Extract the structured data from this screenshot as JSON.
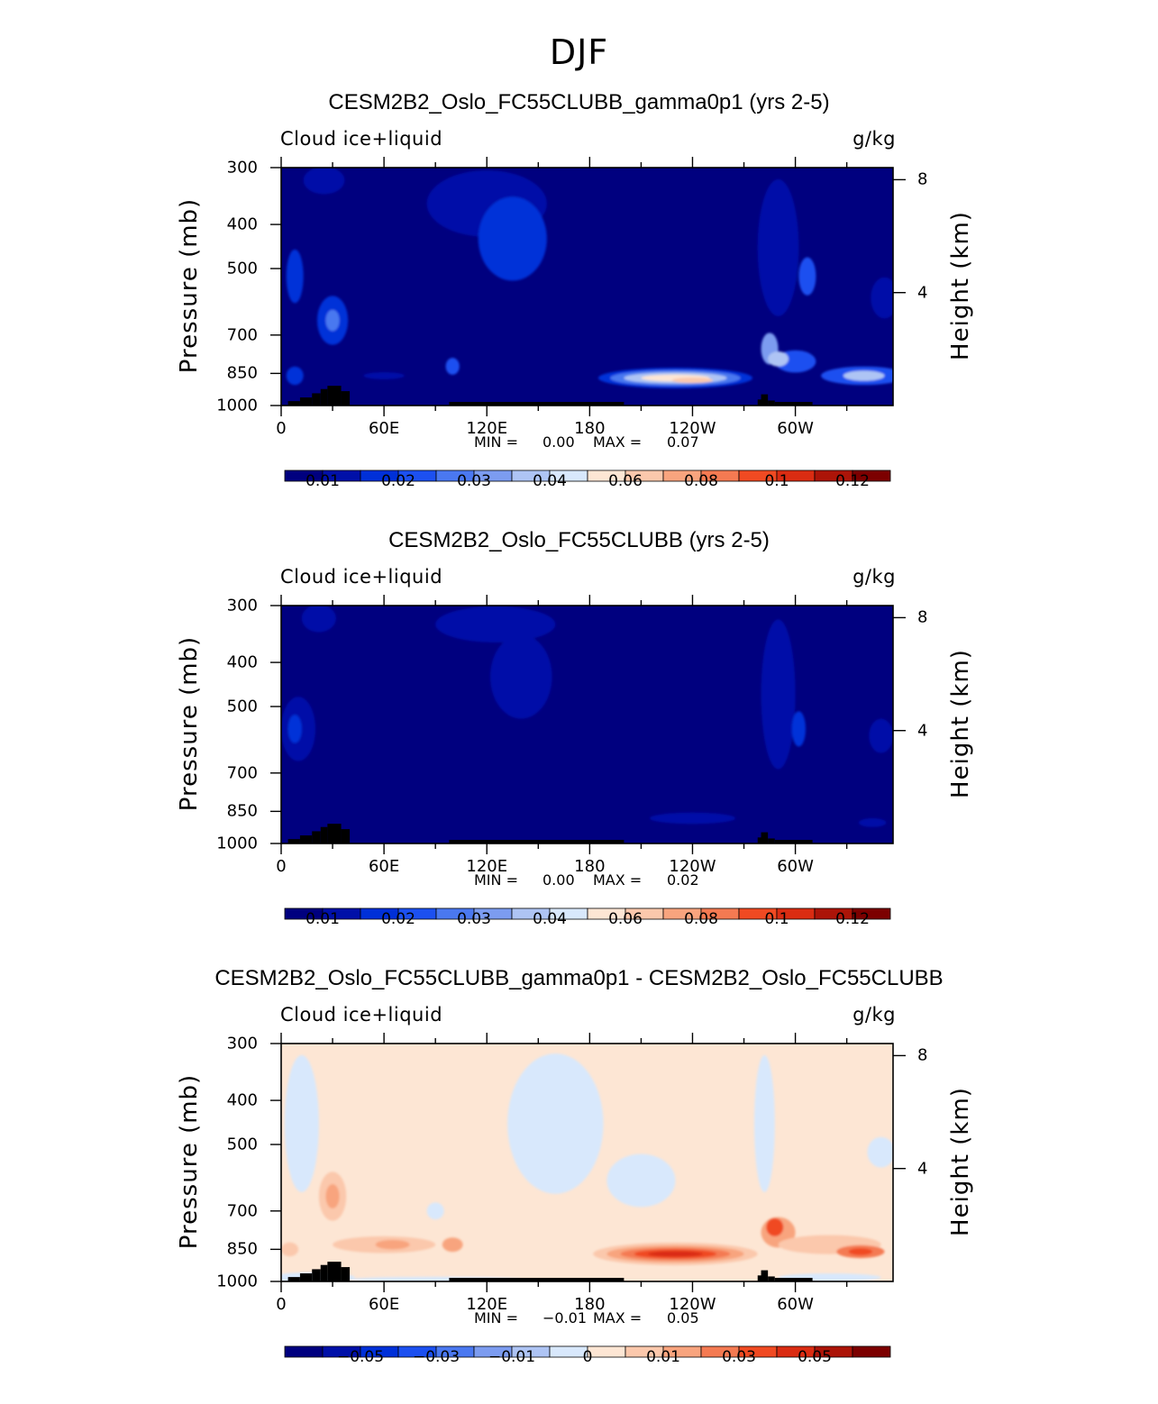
{
  "figure_title": "DJF",
  "chart_data": [
    {
      "type": "heatmap",
      "title": "CESM2B2_Oslo_FC55CLUBB_gamma0p1 (yrs 2-5)",
      "variable_label": "Cloud ice+liquid",
      "units": "g/kg",
      "ylabel": "Pressure (mb)",
      "ylabel_right": "Height (km)",
      "x_tick_labels": [
        "0",
        "60E",
        "120E",
        "180",
        "120W",
        "60W"
      ],
      "x_ticks_deg": [
        0,
        60,
        120,
        180,
        240,
        300
      ],
      "xlim": [
        0,
        357
      ],
      "y_tick_labels": [
        "300",
        "400",
        "500",
        "700",
        "850",
        "1000"
      ],
      "y_ticks": [
        300,
        400,
        500,
        700,
        850,
        1000
      ],
      "ylim": [
        1000,
        300
      ],
      "height_tick_labels": [
        "8",
        "4"
      ],
      "height_ticks_km": [
        8,
        4
      ],
      "min_label": "MIN =",
      "min_value": "0.00",
      "max_label": "MAX =",
      "max_value": "0.07",
      "colorbar_colors": [
        "#00007f",
        "#0010a8",
        "#0030d8",
        "#1c50f0",
        "#4a78f0",
        "#7c9cf0",
        "#aec4f4",
        "#d8e8fc",
        "#fde6d4",
        "#fbc8ac",
        "#f8a47e",
        "#f47a52",
        "#f04a22",
        "#da2c12",
        "#ac1408",
        "#7c0000"
      ],
      "colorbar_labels": [
        "0.01",
        "0.02",
        "0.03",
        "0.04",
        "0.06",
        "0.08",
        "0.1",
        "0.12"
      ],
      "colorbar_label_positions": [
        1,
        3,
        5,
        7,
        9,
        11,
        13,
        15
      ],
      "blobs": [
        {
          "lon": 8,
          "p": 520,
          "rlon": 5,
          "rp": 70,
          "level": 2
        },
        {
          "lon": 30,
          "p": 650,
          "rlon": 9,
          "rp": 80,
          "level": 2
        },
        {
          "lon": 30,
          "p": 650,
          "rlon": 4,
          "rp": 35,
          "level": 4
        },
        {
          "lon": 8,
          "p": 860,
          "rlon": 5,
          "rp": 40,
          "level": 2
        },
        {
          "lon": 25,
          "p": 320,
          "rlon": 12,
          "rp": 25,
          "level": 1
        },
        {
          "lon": 100,
          "p": 820,
          "rlon": 4,
          "rp": 35,
          "level": 3
        },
        {
          "lon": 60,
          "p": 860,
          "rlon": 12,
          "rp": 15,
          "level": 1
        },
        {
          "lon": 120,
          "p": 360,
          "rlon": 35,
          "rp": 60,
          "level": 1
        },
        {
          "lon": 135,
          "p": 430,
          "rlon": 20,
          "rp": 90,
          "level": 2
        },
        {
          "lon": 230,
          "p": 870,
          "rlon": 45,
          "rp": 45,
          "level": 2
        },
        {
          "lon": 230,
          "p": 870,
          "rlon": 38,
          "rp": 35,
          "level": 4
        },
        {
          "lon": 230,
          "p": 870,
          "rlon": 30,
          "rp": 25,
          "level": 6
        },
        {
          "lon": 230,
          "p": 870,
          "rlon": 20,
          "rp": 15,
          "level": 8
        },
        {
          "lon": 240,
          "p": 880,
          "rlon": 12,
          "rp": 8,
          "level": 9
        },
        {
          "lon": 290,
          "p": 450,
          "rlon": 12,
          "rp": 150,
          "level": 1
        },
        {
          "lon": 307,
          "p": 520,
          "rlon": 5,
          "rp": 50,
          "level": 3
        },
        {
          "lon": 285,
          "p": 750,
          "rlon": 5,
          "rp": 60,
          "level": 5
        },
        {
          "lon": 300,
          "p": 800,
          "rlon": 12,
          "rp": 45,
          "level": 3
        },
        {
          "lon": 290,
          "p": 790,
          "rlon": 6,
          "rp": 30,
          "level": 6
        },
        {
          "lon": 340,
          "p": 860,
          "rlon": 25,
          "rp": 40,
          "level": 3
        },
        {
          "lon": 340,
          "p": 860,
          "rlon": 12,
          "rp": 22,
          "level": 6
        },
        {
          "lon": 352,
          "p": 580,
          "rlon": 8,
          "rp": 60,
          "level": 1
        }
      ]
    },
    {
      "type": "heatmap",
      "title": "CESM2B2_Oslo_FC55CLUBB (yrs 2-5)",
      "variable_label": "Cloud ice+liquid",
      "units": "g/kg",
      "ylabel": "Pressure (mb)",
      "ylabel_right": "Height (km)",
      "x_tick_labels": [
        "0",
        "60E",
        "120E",
        "180",
        "120W",
        "60W"
      ],
      "x_ticks_deg": [
        0,
        60,
        120,
        180,
        240,
        300
      ],
      "xlim": [
        0,
        357
      ],
      "y_tick_labels": [
        "300",
        "400",
        "500",
        "700",
        "850",
        "1000"
      ],
      "y_ticks": [
        300,
        400,
        500,
        700,
        850,
        1000
      ],
      "ylim": [
        1000,
        300
      ],
      "height_tick_labels": [
        "8",
        "4"
      ],
      "height_ticks_km": [
        8,
        4
      ],
      "min_label": "MIN =",
      "min_value": "0.00",
      "max_label": "MAX =",
      "max_value": "0.02",
      "colorbar_colors": [
        "#00007f",
        "#0010a8",
        "#0030d8",
        "#1c50f0",
        "#4a78f0",
        "#7c9cf0",
        "#aec4f4",
        "#d8e8fc",
        "#fde6d4",
        "#fbc8ac",
        "#f8a47e",
        "#f47a52",
        "#f04a22",
        "#da2c12",
        "#ac1408",
        "#7c0000"
      ],
      "colorbar_labels": [
        "0.01",
        "0.02",
        "0.03",
        "0.04",
        "0.06",
        "0.08",
        "0.1",
        "0.12"
      ],
      "colorbar_label_positions": [
        1,
        3,
        5,
        7,
        9,
        11,
        13,
        15
      ],
      "blobs": [
        {
          "lon": 10,
          "p": 560,
          "rlon": 10,
          "rp": 90,
          "level": 1
        },
        {
          "lon": 8,
          "p": 560,
          "rlon": 4,
          "rp": 40,
          "level": 2
        },
        {
          "lon": 22,
          "p": 320,
          "rlon": 10,
          "rp": 25,
          "level": 1
        },
        {
          "lon": 125,
          "p": 330,
          "rlon": 35,
          "rp": 30,
          "level": 1
        },
        {
          "lon": 140,
          "p": 430,
          "rlon": 18,
          "rp": 90,
          "level": 1
        },
        {
          "lon": 240,
          "p": 880,
          "rlon": 25,
          "rp": 25,
          "level": 1
        },
        {
          "lon": 290,
          "p": 470,
          "rlon": 10,
          "rp": 170,
          "level": 1
        },
        {
          "lon": 302,
          "p": 560,
          "rlon": 4,
          "rp": 50,
          "level": 2
        },
        {
          "lon": 345,
          "p": 900,
          "rlon": 8,
          "rp": 20,
          "level": 1
        },
        {
          "lon": 350,
          "p": 580,
          "rlon": 7,
          "rp": 50,
          "level": 1
        }
      ]
    },
    {
      "type": "heatmap",
      "title": "CESM2B2_Oslo_FC55CLUBB_gamma0p1 - CESM2B2_Oslo_FC55CLUBB",
      "variable_label": "Cloud ice+liquid",
      "units": "g/kg",
      "ylabel": "Pressure (mb)",
      "ylabel_right": "Height (km)",
      "x_tick_labels": [
        "0",
        "60E",
        "120E",
        "180",
        "120W",
        "60W"
      ],
      "x_ticks_deg": [
        0,
        60,
        120,
        180,
        240,
        300
      ],
      "xlim": [
        0,
        357
      ],
      "y_tick_labels": [
        "300",
        "400",
        "500",
        "700",
        "850",
        "1000"
      ],
      "y_ticks": [
        300,
        400,
        500,
        700,
        850,
        1000
      ],
      "ylim": [
        1000,
        300
      ],
      "height_tick_labels": [
        "8",
        "4"
      ],
      "height_ticks_km": [
        8,
        4
      ],
      "min_label": "MIN =",
      "min_value": "−0.01",
      "max_label": "MAX =",
      "max_value": "0.05",
      "colorbar_colors": [
        "#00007f",
        "#0010a8",
        "#0030d8",
        "#1c50f0",
        "#4a78f0",
        "#7c9cf0",
        "#aec4f4",
        "#d8e8fc",
        "#fde6d4",
        "#fbc8ac",
        "#f8a47e",
        "#f47a52",
        "#f04a22",
        "#da2c12",
        "#ac1408",
        "#7c0000"
      ],
      "colorbar_labels": [
        "−0.05",
        "−0.03",
        "−0.01",
        "0",
        "0.01",
        "0.03",
        "0.05"
      ],
      "colorbar_label_positions": [
        2,
        4,
        6,
        8,
        10,
        12,
        14
      ],
      "background_level": 8,
      "blobs": [
        {
          "lon": 12,
          "p": 450,
          "rlon": 10,
          "rp": 150,
          "level": 7
        },
        {
          "lon": 18,
          "p": 980,
          "rlon": 25,
          "rp": 30,
          "level": 7
        },
        {
          "lon": 90,
          "p": 990,
          "rlon": 50,
          "rp": 15,
          "level": 7
        },
        {
          "lon": 160,
          "p": 450,
          "rlon": 28,
          "rp": 160,
          "level": 7
        },
        {
          "lon": 210,
          "p": 600,
          "rlon": 20,
          "rp": 80,
          "level": 7
        },
        {
          "lon": 282,
          "p": 450,
          "rlon": 6,
          "rp": 150,
          "level": 7
        },
        {
          "lon": 350,
          "p": 520,
          "rlon": 8,
          "rp": 40,
          "level": 7
        },
        {
          "lon": 320,
          "p": 980,
          "rlon": 30,
          "rp": 20,
          "level": 7
        },
        {
          "lon": 90,
          "p": 700,
          "rlon": 5,
          "rp": 30,
          "level": 7
        },
        {
          "lon": 30,
          "p": 650,
          "rlon": 8,
          "rp": 80,
          "level": 9
        },
        {
          "lon": 30,
          "p": 650,
          "rlon": 4,
          "rp": 40,
          "level": 10
        },
        {
          "lon": 60,
          "p": 830,
          "rlon": 30,
          "rp": 35,
          "level": 9
        },
        {
          "lon": 65,
          "p": 830,
          "rlon": 10,
          "rp": 20,
          "level": 10
        },
        {
          "lon": 100,
          "p": 830,
          "rlon": 6,
          "rp": 30,
          "level": 10
        },
        {
          "lon": 5,
          "p": 850,
          "rlon": 5,
          "rp": 30,
          "level": 9
        },
        {
          "lon": 230,
          "p": 870,
          "rlon": 48,
          "rp": 50,
          "level": 9
        },
        {
          "lon": 230,
          "p": 870,
          "rlon": 40,
          "rp": 38,
          "level": 10
        },
        {
          "lon": 230,
          "p": 870,
          "rlon": 32,
          "rp": 28,
          "level": 11
        },
        {
          "lon": 230,
          "p": 870,
          "rlon": 24,
          "rp": 20,
          "level": 12
        },
        {
          "lon": 230,
          "p": 870,
          "rlon": 16,
          "rp": 12,
          "level": 13
        },
        {
          "lon": 290,
          "p": 780,
          "rlon": 10,
          "rp": 60,
          "level": 10
        },
        {
          "lon": 288,
          "p": 760,
          "rlon": 5,
          "rp": 35,
          "level": 12
        },
        {
          "lon": 320,
          "p": 830,
          "rlon": 30,
          "rp": 40,
          "level": 9
        },
        {
          "lon": 338,
          "p": 860,
          "rlon": 14,
          "rp": 28,
          "level": 11
        },
        {
          "lon": 338,
          "p": 860,
          "rlon": 7,
          "rp": 15,
          "level": 12
        }
      ]
    }
  ]
}
